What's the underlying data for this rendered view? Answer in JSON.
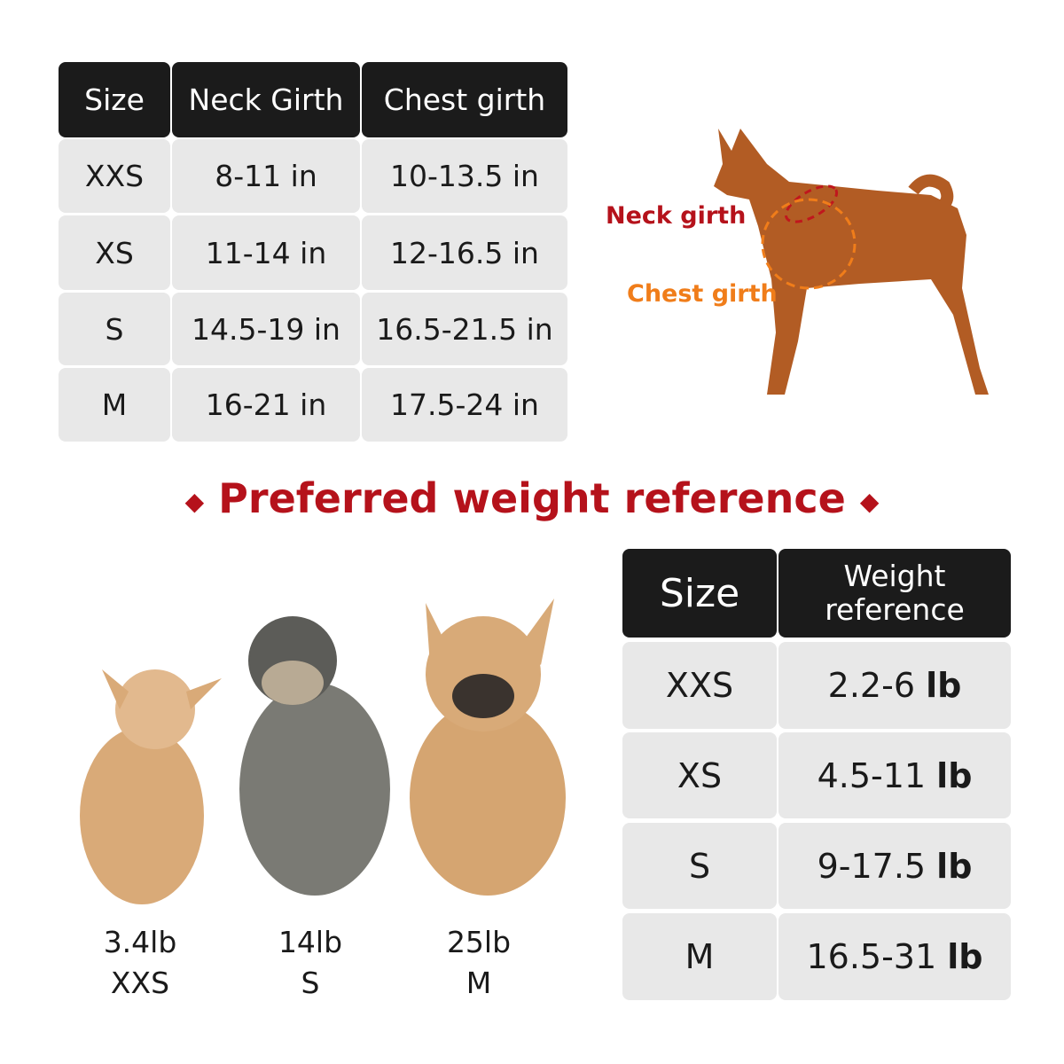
{
  "girth_table": {
    "headers": [
      "Size",
      "Neck Girth",
      "Chest girth"
    ],
    "rows": [
      [
        "XXS",
        "8-11 in",
        "10-13.5 in"
      ],
      [
        "XS",
        "11-14 in",
        "12-16.5 in"
      ],
      [
        "S",
        "14.5-19 in",
        "16.5-21.5 in"
      ],
      [
        "M",
        "16-21 in",
        "17.5-24 in"
      ]
    ]
  },
  "diagram": {
    "neck_label": "Neck girth",
    "chest_label": "Chest girth",
    "neck_color": "#b5121b",
    "chest_color": "#f07d1a"
  },
  "section_title": "Preferred weight reference",
  "title_color": "#b5121b",
  "weight_table": {
    "headers": [
      "Size",
      "Weight reference"
    ],
    "rows": [
      [
        "XXS",
        "2.2-6",
        "lb"
      ],
      [
        "XS",
        "4.5-11",
        "lb"
      ],
      [
        "S",
        "9-17.5",
        "lb"
      ],
      [
        "M",
        "16.5-31",
        "lb"
      ]
    ]
  },
  "dogs": [
    {
      "weight": "3.4lb",
      "size": "XXS"
    },
    {
      "weight": "14lb",
      "size": "S"
    },
    {
      "weight": "25lb",
      "size": "M"
    }
  ]
}
